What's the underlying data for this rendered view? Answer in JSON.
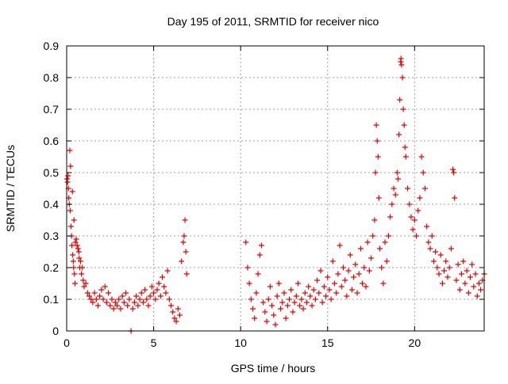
{
  "chart_data": {
    "type": "scatter",
    "title": "Day 195 of 2011, SRMTID for receiver nico",
    "xlabel": "GPS time / hours",
    "ylabel": "SRMTID / TECUs",
    "xlim": [
      0,
      24
    ],
    "ylim": [
      0,
      0.9
    ],
    "xticks": [
      0,
      5,
      10,
      15,
      20
    ],
    "xtick_labels": [
      "0",
      "5",
      "10",
      "15",
      "20"
    ],
    "yticks": [
      0,
      0.1,
      0.2,
      0.3,
      0.4,
      0.5,
      0.6,
      0.7,
      0.8,
      0.9
    ],
    "ytick_labels": [
      "0",
      "0.1",
      "0.2",
      "0.3",
      "0.4",
      "0.5",
      "0.6",
      "0.7",
      "0.8",
      "0.9"
    ],
    "grid": true,
    "marker": "+",
    "series": [
      {
        "name": "SRMTID",
        "color": "#e60000",
        "points": [
          [
            0.02,
            0.48
          ],
          [
            0.05,
            0.47
          ],
          [
            0.08,
            0.49
          ],
          [
            0.1,
            0.45
          ],
          [
            0.12,
            0.42
          ],
          [
            0.15,
            0.4
          ],
          [
            0.18,
            0.57
          ],
          [
            0.2,
            0.38
          ],
          [
            0.22,
            0.52
          ],
          [
            0.25,
            0.33
          ],
          [
            0.28,
            0.3
          ],
          [
            0.3,
            0.27
          ],
          [
            0.33,
            0.44
          ],
          [
            0.35,
            0.24
          ],
          [
            0.38,
            0.22
          ],
          [
            0.4,
            0.2
          ],
          [
            0.42,
            0.35
          ],
          [
            0.45,
            0.18
          ],
          [
            0.48,
            0.15
          ],
          [
            0.5,
            0.28
          ],
          [
            0.55,
            0.29
          ],
          [
            0.6,
            0.27
          ],
          [
            0.65,
            0.26
          ],
          [
            0.7,
            0.25
          ],
          [
            0.72,
            0.23
          ],
          [
            0.75,
            0.2
          ],
          [
            0.8,
            0.22
          ],
          [
            0.85,
            0.18
          ],
          [
            0.9,
            0.2
          ],
          [
            0.95,
            0.16
          ],
          [
            1.0,
            0.14
          ],
          [
            1.1,
            0.15
          ],
          [
            1.2,
            0.12
          ],
          [
            1.3,
            0.11
          ],
          [
            1.4,
            0.1
          ],
          [
            1.5,
            0.09
          ],
          [
            1.6,
            0.12
          ],
          [
            1.7,
            0.1
          ],
          [
            1.8,
            0.08
          ],
          [
            1.9,
            0.11
          ],
          [
            2.0,
            0.13
          ],
          [
            2.1,
            0.1
          ],
          [
            2.2,
            0.14
          ],
          [
            2.3,
            0.09
          ],
          [
            2.4,
            0.12
          ],
          [
            2.5,
            0.08
          ],
          [
            2.6,
            0.1
          ],
          [
            2.7,
            0.07
          ],
          [
            2.8,
            0.09
          ],
          [
            2.9,
            0.08
          ],
          [
            3.0,
            0.1
          ],
          [
            3.1,
            0.07
          ],
          [
            3.2,
            0.11
          ],
          [
            3.3,
            0.09
          ],
          [
            3.4,
            0.12
          ],
          [
            3.5,
            0.08
          ],
          [
            3.6,
            0.1
          ],
          [
            3.7,
            0.0
          ],
          [
            3.8,
            0.07
          ],
          [
            3.9,
            0.09
          ],
          [
            4.0,
            0.11
          ],
          [
            4.1,
            0.08
          ],
          [
            4.2,
            0.1
          ],
          [
            4.3,
            0.12
          ],
          [
            4.4,
            0.09
          ],
          [
            4.5,
            0.13
          ],
          [
            4.6,
            0.1
          ],
          [
            4.7,
            0.08
          ],
          [
            4.8,
            0.11
          ],
          [
            4.9,
            0.14
          ],
          [
            5.0,
            0.12
          ],
          [
            5.1,
            0.1
          ],
          [
            5.2,
            0.13
          ],
          [
            5.3,
            0.15
          ],
          [
            5.4,
            0.11
          ],
          [
            5.5,
            0.17
          ],
          [
            5.6,
            0.14
          ],
          [
            5.7,
            0.12
          ],
          [
            5.8,
            0.19
          ],
          [
            5.9,
            0.1
          ],
          [
            6.0,
            0.08
          ],
          [
            6.1,
            0.06
          ],
          [
            6.2,
            0.04
          ],
          [
            6.3,
            0.03
          ],
          [
            6.4,
            0.07
          ],
          [
            6.5,
            0.05
          ],
          [
            6.6,
            0.22
          ],
          [
            6.7,
            0.28
          ],
          [
            6.75,
            0.3
          ],
          [
            6.8,
            0.35
          ],
          [
            6.85,
            0.25
          ],
          [
            6.9,
            0.18
          ],
          [
            10.3,
            0.28
          ],
          [
            10.4,
            0.2
          ],
          [
            10.5,
            0.15
          ],
          [
            10.6,
            0.1
          ],
          [
            10.7,
            0.07
          ],
          [
            10.8,
            0.04
          ],
          [
            10.9,
            0.12
          ],
          [
            11.0,
            0.18
          ],
          [
            11.1,
            0.24
          ],
          [
            11.2,
            0.27
          ],
          [
            11.3,
            0.09
          ],
          [
            11.4,
            0.06
          ],
          [
            11.5,
            0.03
          ],
          [
            11.6,
            0.1
          ],
          [
            11.7,
            0.14
          ],
          [
            11.8,
            0.08
          ],
          [
            11.9,
            0.05
          ],
          [
            12.0,
            0.02
          ],
          [
            12.1,
            0.11
          ],
          [
            12.2,
            0.15
          ],
          [
            12.3,
            0.07
          ],
          [
            12.4,
            0.09
          ],
          [
            12.5,
            0.12
          ],
          [
            12.6,
            0.04
          ],
          [
            12.7,
            0.08
          ],
          [
            12.8,
            0.1
          ],
          [
            12.9,
            0.13
          ],
          [
            13.0,
            0.06
          ],
          [
            13.1,
            0.09
          ],
          [
            13.2,
            0.11
          ],
          [
            13.3,
            0.15
          ],
          [
            13.4,
            0.08
          ],
          [
            13.5,
            0.1
          ],
          [
            13.6,
            0.07
          ],
          [
            13.7,
            0.12
          ],
          [
            13.8,
            0.09
          ],
          [
            13.9,
            0.14
          ],
          [
            14.0,
            0.11
          ],
          [
            14.1,
            0.08
          ],
          [
            14.2,
            0.13
          ],
          [
            14.3,
            0.1
          ],
          [
            14.4,
            0.16
          ],
          [
            14.5,
            0.12
          ],
          [
            14.6,
            0.19
          ],
          [
            14.7,
            0.09
          ],
          [
            14.8,
            0.14
          ],
          [
            14.9,
            0.11
          ],
          [
            15.0,
            0.17
          ],
          [
            15.1,
            0.13
          ],
          [
            15.2,
            0.1
          ],
          [
            15.3,
            0.22
          ],
          [
            15.4,
            0.15
          ],
          [
            15.5,
            0.12
          ],
          [
            15.6,
            0.18
          ],
          [
            15.7,
            0.27
          ],
          [
            15.8,
            0.14
          ],
          [
            15.9,
            0.2
          ],
          [
            16.0,
            0.16
          ],
          [
            16.1,
            0.11
          ],
          [
            16.2,
            0.19
          ],
          [
            16.3,
            0.24
          ],
          [
            16.4,
            0.13
          ],
          [
            16.5,
            0.17
          ],
          [
            16.6,
            0.21
          ],
          [
            16.7,
            0.12
          ],
          [
            16.8,
            0.18
          ],
          [
            16.9,
            0.26
          ],
          [
            17.0,
            0.15
          ],
          [
            17.1,
            0.2
          ],
          [
            17.2,
            0.14
          ],
          [
            17.3,
            0.28
          ],
          [
            17.4,
            0.19
          ],
          [
            17.5,
            0.23
          ],
          [
            17.6,
            0.3
          ],
          [
            17.7,
            0.35
          ],
          [
            17.75,
            0.5
          ],
          [
            17.8,
            0.65
          ],
          [
            17.85,
            0.6
          ],
          [
            17.9,
            0.55
          ],
          [
            17.95,
            0.42
          ],
          [
            18.0,
            0.26
          ],
          [
            18.1,
            0.2
          ],
          [
            18.2,
            0.15
          ],
          [
            18.3,
            0.28
          ],
          [
            18.4,
            0.22
          ],
          [
            18.5,
            0.3
          ],
          [
            18.6,
            0.36
          ],
          [
            18.7,
            0.4
          ],
          [
            18.8,
            0.45
          ],
          [
            18.9,
            0.43
          ],
          [
            19.0,
            0.5
          ],
          [
            19.05,
            0.48
          ],
          [
            19.1,
            0.62
          ],
          [
            19.15,
            0.73
          ],
          [
            19.2,
            0.85
          ],
          [
            19.22,
            0.86
          ],
          [
            19.25,
            0.84
          ],
          [
            19.3,
            0.8
          ],
          [
            19.35,
            0.7
          ],
          [
            19.4,
            0.65
          ],
          [
            19.45,
            0.58
          ],
          [
            19.5,
            0.55
          ],
          [
            19.6,
            0.45
          ],
          [
            19.7,
            0.4
          ],
          [
            19.8,
            0.36
          ],
          [
            19.9,
            0.32
          ],
          [
            20.0,
            0.35
          ],
          [
            20.1,
            0.3
          ],
          [
            20.2,
            0.38
          ],
          [
            20.3,
            0.42
          ],
          [
            20.4,
            0.55
          ],
          [
            20.5,
            0.5
          ],
          [
            20.6,
            0.45
          ],
          [
            20.7,
            0.33
          ],
          [
            20.8,
            0.28
          ],
          [
            20.9,
            0.26
          ],
          [
            21.0,
            0.3
          ],
          [
            21.1,
            0.22
          ],
          [
            21.2,
            0.25
          ],
          [
            21.3,
            0.2
          ],
          [
            21.4,
            0.18
          ],
          [
            21.5,
            0.24
          ],
          [
            21.6,
            0.15
          ],
          [
            21.7,
            0.19
          ],
          [
            21.8,
            0.22
          ],
          [
            21.9,
            0.17
          ],
          [
            22.0,
            0.2
          ],
          [
            22.1,
            0.26
          ],
          [
            22.2,
            0.51
          ],
          [
            22.25,
            0.5
          ],
          [
            22.3,
            0.42
          ],
          [
            22.4,
            0.16
          ],
          [
            22.5,
            0.21
          ],
          [
            22.6,
            0.13
          ],
          [
            22.7,
            0.18
          ],
          [
            22.8,
            0.22
          ],
          [
            22.9,
            0.15
          ],
          [
            23.0,
            0.19
          ],
          [
            23.1,
            0.12
          ],
          [
            23.2,
            0.17
          ],
          [
            23.3,
            0.21
          ],
          [
            23.4,
            0.14
          ],
          [
            23.5,
            0.18
          ],
          [
            23.6,
            0.11
          ],
          [
            23.7,
            0.15
          ],
          [
            23.8,
            0.13
          ],
          [
            23.9,
            0.16
          ],
          [
            24.0,
            0.18
          ]
        ]
      }
    ]
  }
}
